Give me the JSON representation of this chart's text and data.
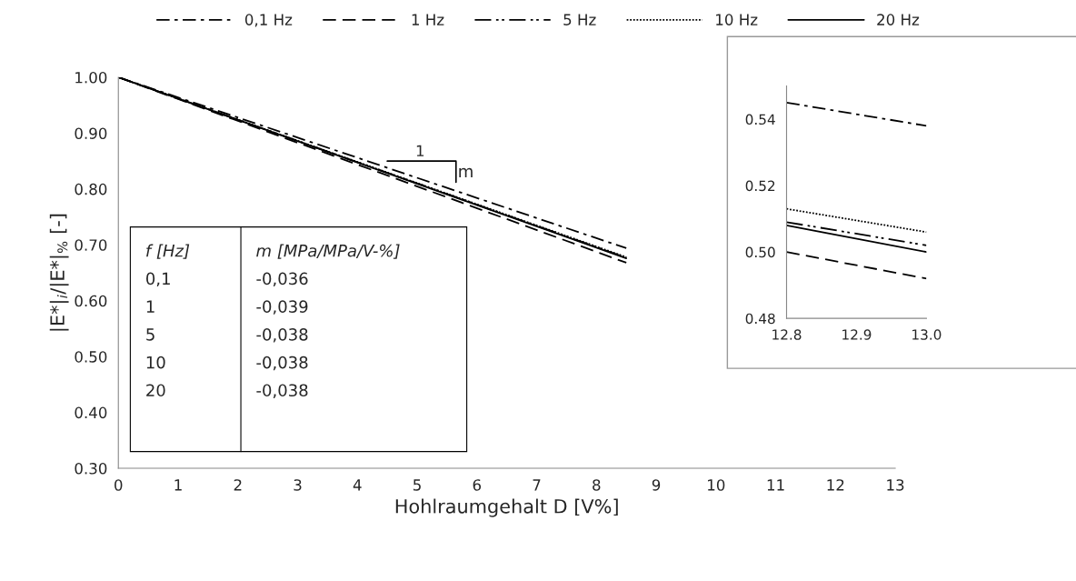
{
  "chart_data": [
    {
      "type": "line",
      "xlabel": "Hohlraumgehalt D [V%]",
      "ylabel": "|E*|$_{i}$/|E*|$_{%}$ [-]",
      "x": [
        0,
        8.5
      ],
      "xlim": [
        0,
        13
      ],
      "xticks": [
        0,
        1,
        2,
        3,
        4,
        5,
        6,
        7,
        8,
        9,
        10,
        11,
        12,
        13
      ],
      "ylim": [
        0.3,
        1.0
      ],
      "yticks": [
        {
          "value": 0.3,
          "label": "0.30"
        },
        {
          "value": 0.4,
          "label": "0.40"
        },
        {
          "value": 0.5,
          "label": "0.50"
        },
        {
          "value": 0.6,
          "label": "0.60"
        },
        {
          "value": 0.7,
          "label": "0.70"
        },
        {
          "value": 0.8,
          "label": "0.80"
        },
        {
          "value": 0.9,
          "label": "0.90"
        },
        {
          "value": 1.0,
          "label": "1.00"
        }
      ],
      "series": [
        {
          "name": "0,1 Hz",
          "color": "#000000",
          "line_style": "dashdot",
          "values": [
            1.0,
            0.694
          ]
        },
        {
          "name": "1 Hz",
          "color": "#000000",
          "line_style": "dashed",
          "values": [
            1.0,
            0.668
          ]
        },
        {
          "name": "5 Hz",
          "color": "#000000",
          "line_style": "dashdotdot",
          "values": [
            1.0,
            0.677
          ]
        },
        {
          "name": "10 Hz",
          "color": "#000000",
          "line_style": "dotted",
          "values": [
            1.0,
            0.678
          ]
        },
        {
          "name": "20 Hz",
          "color": "#000000",
          "line_style": "solid",
          "values": [
            1.0,
            0.676
          ]
        }
      ],
      "annotations": [
        "1",
        "m",
        "f [Hz]",
        "m [MPa/MPa/V-%]",
        "0,1",
        "-0,036",
        "1",
        "-0,039",
        "5",
        "-0,038",
        "10",
        "-0,038",
        "20",
        "-0,038"
      ],
      "legend": "top",
      "grid": false
    },
    {
      "type": "line",
      "x": [
        12.8,
        13.0
      ],
      "xlim": [
        12.8,
        13.0
      ],
      "xticks": [
        12.8,
        12.9,
        {
          "value": 13.0,
          "label": "13.0"
        }
      ],
      "ylim": [
        0.48,
        0.55
      ],
      "yticks": [
        {
          "value": 0.48,
          "label": "0.48"
        },
        {
          "value": 0.5,
          "label": "0.50"
        },
        {
          "value": 0.52,
          "label": "0.52"
        },
        {
          "value": 0.54,
          "label": "0.54"
        }
      ],
      "series": [
        {
          "color": "#000000",
          "line_style": "dashdot",
          "values": [
            0.545,
            0.538
          ]
        },
        {
          "color": "#000000",
          "line_style": "dashed",
          "values": [
            0.5,
            0.492
          ]
        },
        {
          "color": "#000000",
          "line_style": "dashdotdot",
          "values": [
            0.509,
            0.502
          ]
        },
        {
          "color": "#000000",
          "line_style": "dotted",
          "values": [
            0.513,
            0.506
          ]
        },
        {
          "color": "#000000",
          "line_style": "solid",
          "values": [
            0.508,
            0.5
          ]
        }
      ],
      "grid": false
    }
  ]
}
